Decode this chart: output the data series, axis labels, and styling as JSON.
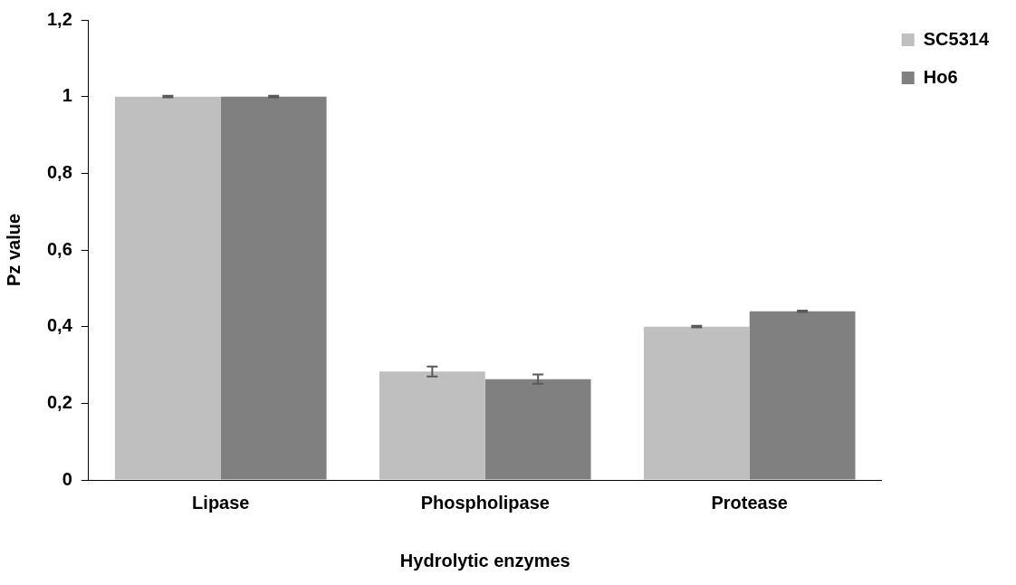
{
  "chart_data": {
    "type": "bar",
    "xlabel": "Hydrolytic enzymes",
    "ylabel": "Pz value",
    "categories": [
      "Lipase",
      "Phospholipase",
      "Protease"
    ],
    "series": [
      {
        "name": "SC5314",
        "color": "#bfbfbf",
        "values": [
          1,
          0.283,
          0.4
        ],
        "errors": [
          0.002,
          0.013,
          0.002
        ]
      },
      {
        "name": "Ho6",
        "color": "#808080",
        "values": [
          1,
          0.263,
          0.44
        ],
        "errors": [
          0.002,
          0.012,
          0.002
        ]
      }
    ],
    "ylim": [
      0,
      1.2
    ],
    "yticks": [
      0,
      {
        "value": 0.2,
        "label": "0,2"
      },
      {
        "value": 0.4,
        "label": "0,4"
      },
      {
        "value": 0.6,
        "label": "0,6"
      },
      {
        "value": 0.8,
        "label": "0,8"
      },
      1,
      {
        "value": 1.2,
        "label": "1,2"
      }
    ],
    "grid": false,
    "legend": "right"
  }
}
